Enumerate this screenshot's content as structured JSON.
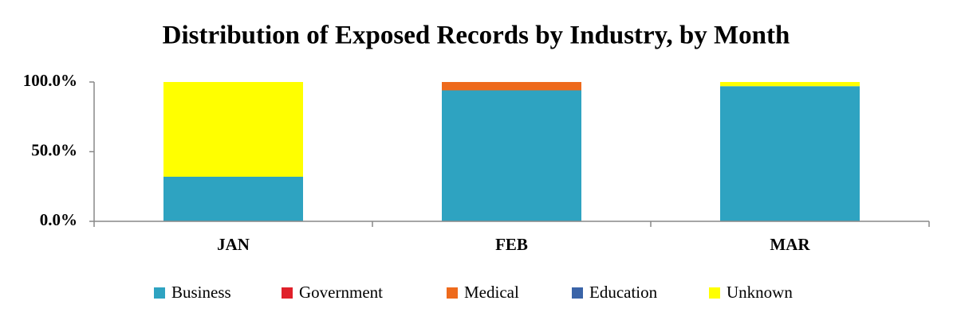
{
  "chart_data": {
    "type": "stacked-bar",
    "title": "Distribution of Exposed Records by Industry, by Month",
    "categories": [
      "JAN",
      "FEB",
      "MAR"
    ],
    "series": [
      {
        "name": "Business",
        "color": "#2ea3c1",
        "values": [
          32,
          94,
          97
        ]
      },
      {
        "name": "Government",
        "color": "#e0202a",
        "values": [
          0,
          0,
          0
        ]
      },
      {
        "name": "Medical",
        "color": "#ee6a1c",
        "values": [
          0,
          6,
          0
        ]
      },
      {
        "name": "Education",
        "color": "#3a64a8",
        "values": [
          0,
          0,
          0
        ]
      },
      {
        "name": "Unknown",
        "color": "#ffff00",
        "values": [
          68,
          0,
          3
        ]
      }
    ],
    "ylim": [
      0,
      100
    ],
    "yticks": [
      {
        "value": 0,
        "label": "0.0%"
      },
      {
        "value": 50,
        "label": "50.0%"
      },
      {
        "value": 100,
        "label": "100.0%"
      }
    ],
    "grid": false,
    "legend": "bottom"
  }
}
